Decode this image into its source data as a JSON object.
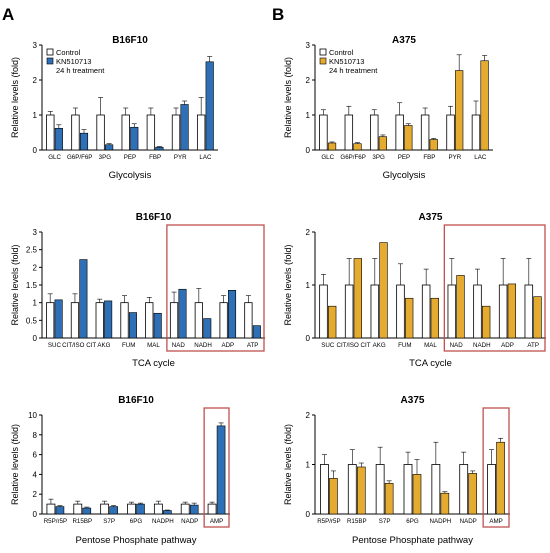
{
  "figure": {
    "panel_labels": [
      "A",
      "B"
    ]
  },
  "colors": {
    "control": "#ffffff",
    "kn_blue": "#2e6fb5",
    "kn_gold": "#e5aa30",
    "highlight_box": "#c0504d",
    "axis": "#000000"
  },
  "legend": {
    "control": "Control",
    "treatment": "KN510713",
    "note": "24 h treatment"
  },
  "chart_data": [
    {
      "type": "bar",
      "title": "B16F10",
      "xlabel": "Glycolysis",
      "ylabel": "Relative levels (fold)",
      "ylim": [
        0,
        3
      ],
      "yticks": [
        0,
        1,
        2,
        3
      ],
      "categories": [
        "GLC",
        "G6P/F6P",
        "3PG",
        "PEP",
        "FBP",
        "PYR",
        "LAC"
      ],
      "series": [
        {
          "name": "Control",
          "values": [
            1.0,
            1.0,
            1.0,
            1.0,
            1.0,
            1.0,
            1.0
          ],
          "errors": [
            0.1,
            0.2,
            0.5,
            0.2,
            0.2,
            0.2,
            0.5
          ]
        },
        {
          "name": "KN510713",
          "values": [
            0.62,
            0.48,
            0.15,
            0.65,
            0.08,
            1.3,
            2.52
          ],
          "errors": [
            0.1,
            0.1,
            0.03,
            0.1,
            0.02,
            0.1,
            0.15
          ]
        }
      ]
    },
    {
      "type": "bar",
      "title": "A375",
      "xlabel": "Glycolysis",
      "ylabel": "Relative levels (fold)",
      "ylim": [
        0,
        3
      ],
      "yticks": [
        0,
        1,
        2,
        3
      ],
      "categories": [
        "GLC",
        "G6P/F6P",
        "3PG",
        "PEP",
        "FBP",
        "PYR",
        "LAC"
      ],
      "series": [
        {
          "name": "Control",
          "values": [
            1.0,
            1.0,
            1.0,
            1.0,
            1.0,
            1.0,
            1.0
          ],
          "errors": [
            0.15,
            0.25,
            0.15,
            0.35,
            0.2,
            0.25,
            0.4
          ]
        },
        {
          "name": "KN510713",
          "values": [
            0.2,
            0.18,
            0.38,
            0.7,
            0.3,
            2.27,
            2.55
          ],
          "errors": [
            0.03,
            0.03,
            0.05,
            0.05,
            0.03,
            0.45,
            0.15
          ]
        }
      ]
    },
    {
      "type": "bar",
      "title": "B16F10",
      "xlabel": "TCA cycle",
      "ylabel": "Relative levels (fold)",
      "ylim": [
        0,
        3
      ],
      "yticks": [
        0,
        0.5,
        1,
        1.5,
        2,
        2.5,
        3
      ],
      "categories": [
        "SUC",
        "CIT/ISO CIT",
        "AKG",
        "FUM",
        "MAL",
        "NAD",
        "NADH",
        "ADP",
        "ATP"
      ],
      "series": [
        {
          "name": "Control",
          "values": [
            1.0,
            1.0,
            1.0,
            1.0,
            1.0,
            1.0,
            1.0,
            1.0,
            1.0
          ],
          "errors": [
            0.25,
            0.25,
            0.1,
            0.2,
            0.15,
            0.3,
            0.4,
            0.2,
            0.2
          ]
        },
        {
          "name": "KN510713",
          "values": [
            1.08,
            2.22,
            1.05,
            0.72,
            0.7,
            1.38,
            0.55,
            1.35,
            0.35
          ]
        }
      ],
      "highlight": [
        "NAD",
        "ATP"
      ]
    },
    {
      "type": "bar",
      "title": "A375",
      "xlabel": "TCA cycle",
      "ylabel": "Relative levels (fold)",
      "ylim": [
        0,
        2
      ],
      "yticks": [
        0,
        1,
        2
      ],
      "categories": [
        "SUC",
        "CIT/ISO CIT",
        "AKG",
        "FUM",
        "MAL",
        "NAD",
        "NADH",
        "ADP",
        "ATP"
      ],
      "series": [
        {
          "name": "Control",
          "values": [
            1.0,
            1.0,
            1.0,
            1.0,
            1.0,
            1.0,
            1.0,
            1.0,
            1.0
          ],
          "errors": [
            0.2,
            0.5,
            0.5,
            0.4,
            0.3,
            0.5,
            0.3,
            0.5,
            0.5
          ]
        },
        {
          "name": "KN510713",
          "values": [
            0.6,
            1.5,
            1.8,
            0.75,
            0.75,
            1.18,
            0.6,
            1.02,
            0.78
          ]
        }
      ],
      "highlight": [
        "NAD",
        "ATP"
      ]
    },
    {
      "type": "bar",
      "title": "B16F10",
      "xlabel": "Pentose Phosphate pathway",
      "ylabel": "Relative levels (fold)",
      "ylim": [
        0,
        10
      ],
      "yticks": [
        0,
        2,
        4,
        6,
        8,
        10
      ],
      "categories": [
        "R5P/r5P",
        "R15BP",
        "S7P",
        "6PG",
        "NADPH",
        "NADP",
        "AMP"
      ],
      "series": [
        {
          "name": "Control",
          "values": [
            1.0,
            1.0,
            1.0,
            1.0,
            1.0,
            1.0,
            1.0
          ],
          "errors": [
            0.5,
            0.3,
            0.3,
            0.2,
            0.3,
            0.2,
            0.2
          ]
        },
        {
          "name": "KN510713",
          "values": [
            0.75,
            0.6,
            0.75,
            1.0,
            0.35,
            0.9,
            8.9
          ],
          "errors": [
            0.1,
            0.1,
            0.1,
            0.1,
            0.05,
            0.2,
            0.3
          ]
        }
      ],
      "highlight": [
        "AMP"
      ]
    },
    {
      "type": "bar",
      "title": "A375",
      "xlabel": "Pentose Phosphate pathway",
      "ylabel": "Relative levels (fold)",
      "ylim": [
        0,
        2
      ],
      "yticks": [
        0,
        1,
        2
      ],
      "categories": [
        "R5P/r5P",
        "R15BP",
        "S7P",
        "6PG",
        "NADPH",
        "NADP",
        "AMP"
      ],
      "series": [
        {
          "name": "Control",
          "values": [
            1.0,
            1.0,
            1.0,
            1.0,
            1.0,
            1.0,
            1.0
          ],
          "errors": [
            0.2,
            0.3,
            0.35,
            0.25,
            0.45,
            0.25,
            0.3
          ]
        },
        {
          "name": "KN510713",
          "values": [
            0.72,
            0.95,
            0.62,
            0.8,
            0.42,
            0.82,
            1.45
          ],
          "errors": [
            0.15,
            0.08,
            0.05,
            0.3,
            0.03,
            0.05,
            0.08
          ]
        }
      ],
      "highlight": [
        "AMP"
      ]
    }
  ]
}
